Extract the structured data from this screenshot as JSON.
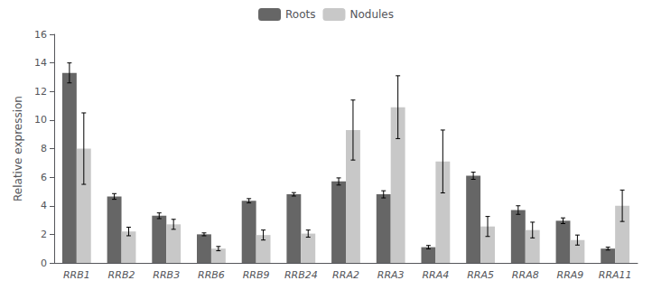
{
  "chart_data": {
    "type": "bar",
    "categories": [
      "RRB1",
      "RRB2",
      "RRB3",
      "RRB6",
      "RRB9",
      "RRB24",
      "RRA2",
      "RRA3",
      "RRA4",
      "RRA5",
      "RRA8",
      "RRA9",
      "RRA11"
    ],
    "series": [
      {
        "name": "Roots",
        "color": "#666666",
        "values": [
          13.3,
          4.65,
          3.3,
          2.0,
          4.35,
          4.8,
          5.7,
          4.8,
          1.1,
          6.1,
          3.7,
          2.95,
          1.0
        ],
        "errors": [
          0.7,
          0.2,
          0.2,
          0.1,
          0.15,
          0.12,
          0.25,
          0.25,
          0.12,
          0.25,
          0.3,
          0.2,
          0.1
        ]
      },
      {
        "name": "Nodules",
        "color": "#c8c8c8",
        "values": [
          8.0,
          2.2,
          2.7,
          1.0,
          1.95,
          2.05,
          9.3,
          10.9,
          7.1,
          2.55,
          2.3,
          1.6,
          4.0
        ],
        "errors": [
          2.5,
          0.3,
          0.35,
          0.15,
          0.35,
          0.25,
          2.1,
          2.2,
          2.2,
          0.7,
          0.55,
          0.35,
          1.1
        ]
      }
    ],
    "ylabel": "Relative expression",
    "ylim": [
      0,
      16
    ],
    "yticks": [
      0,
      2,
      4,
      6,
      8,
      10,
      12,
      14,
      16
    ],
    "grid": false,
    "legend": "top"
  }
}
